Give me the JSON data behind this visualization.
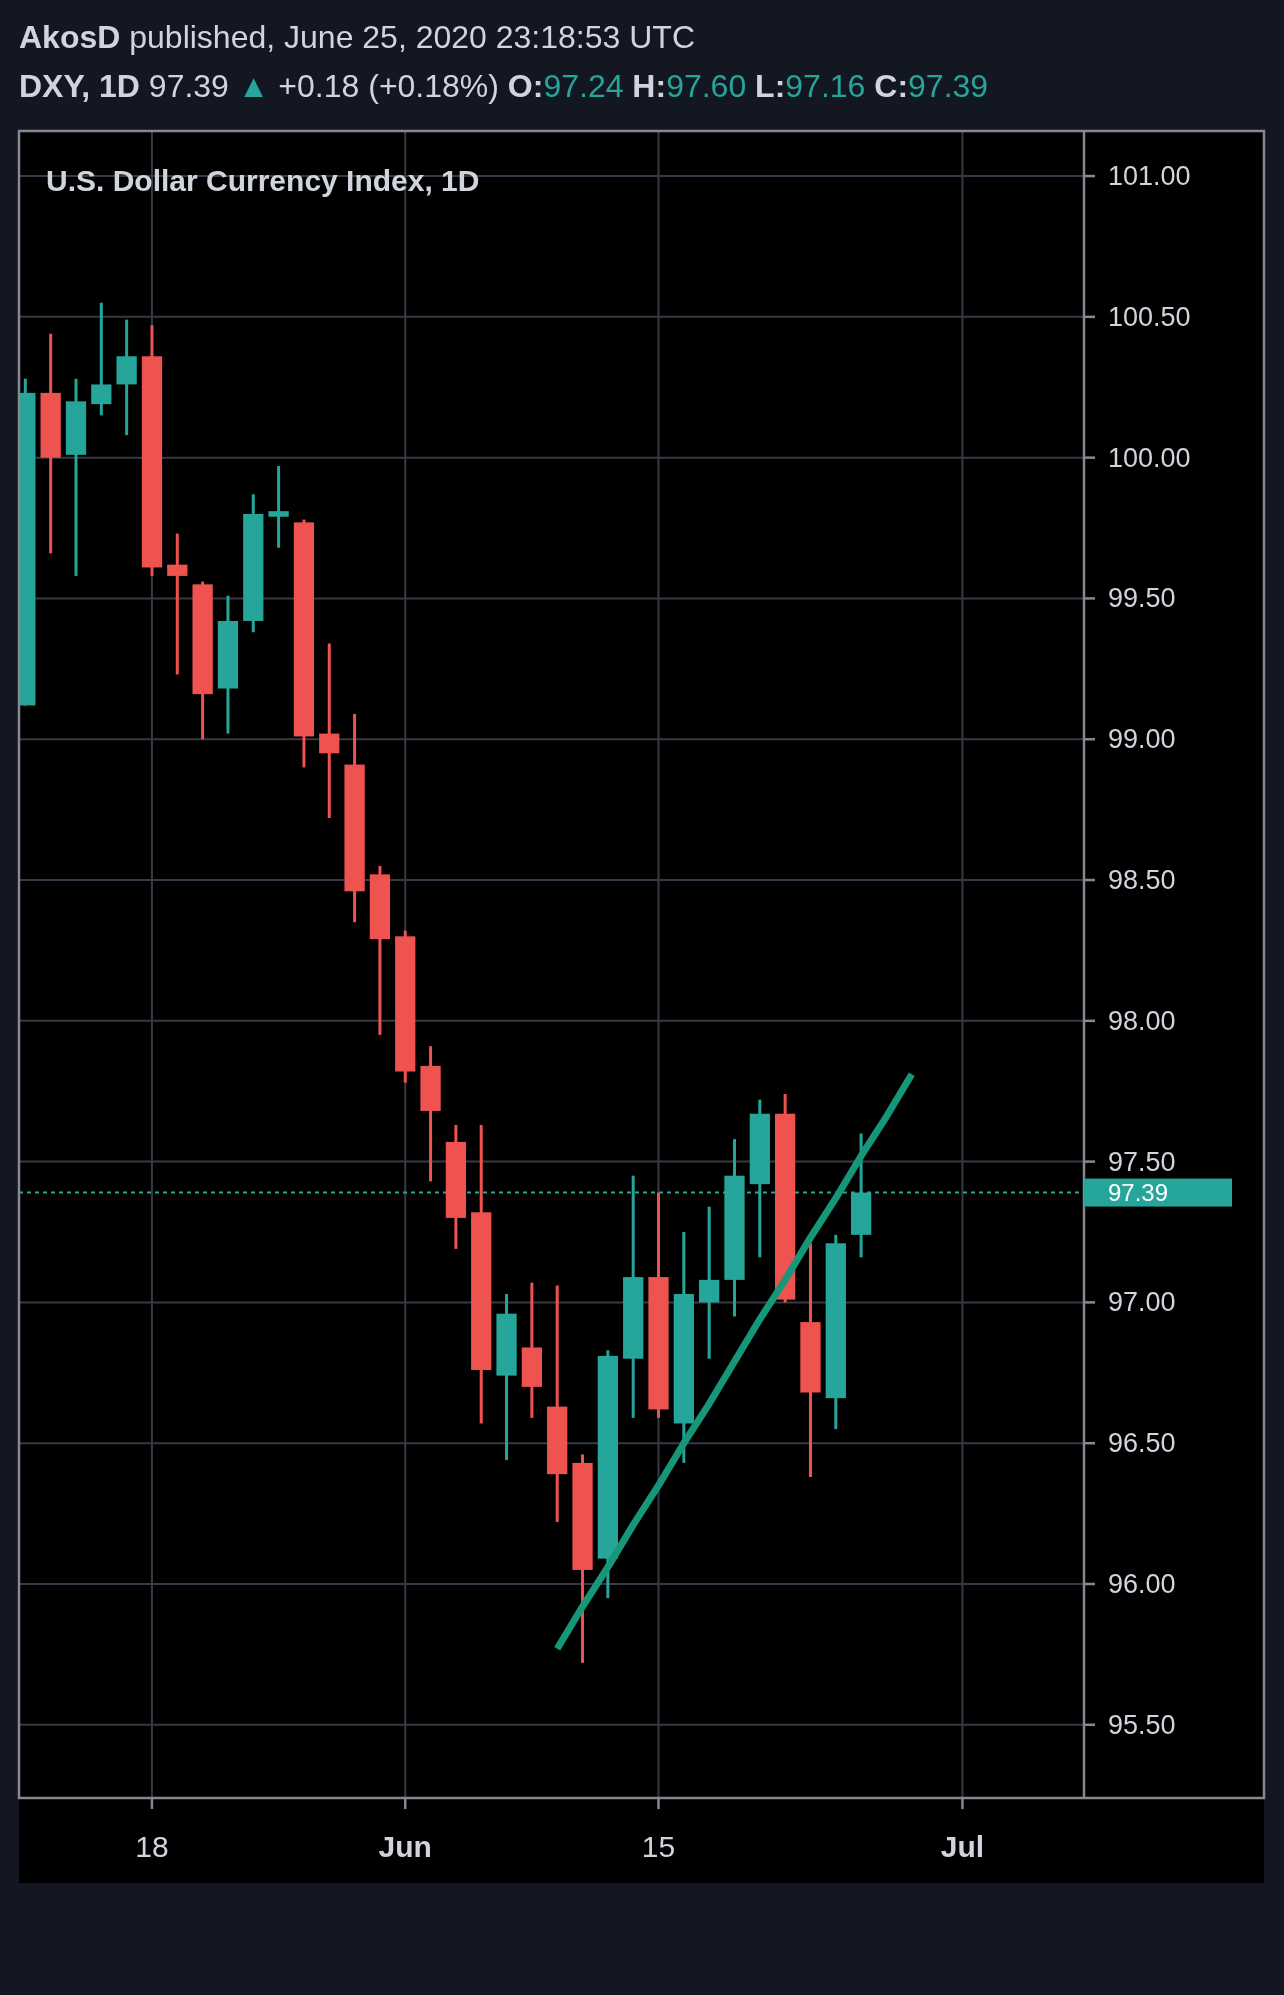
{
  "chart_data": {
    "type": "candlestick",
    "title": "U.S. Dollar Currency Index, 1D",
    "annotations": [
      "AkosD published, June 25, 2020 23:18:53 UTC",
      "DXY, 1D 97.39 ▲ +0.18 (+0.18%) O:97.24 H:97.60 L:97.16 C:97.39"
    ],
    "categories": [
      null,
      null,
      null,
      null,
      null,
      "18",
      null,
      null,
      null,
      null,
      null,
      null,
      null,
      null,
      null,
      "Jun",
      null,
      null,
      null,
      null,
      null,
      null,
      null,
      null,
      null,
      "15",
      null,
      null,
      null,
      null,
      null,
      null,
      null,
      null,
      null,
      null,
      null,
      "Jul"
    ],
    "ohlc": [
      [
        99.12,
        100.28,
        99.12,
        100.23
      ],
      [
        100.23,
        100.44,
        99.66,
        100.0
      ],
      [
        100.01,
        100.28,
        99.58,
        100.2
      ],
      [
        100.19,
        100.55,
        100.15,
        100.26
      ],
      [
        100.26,
        100.49,
        100.08,
        100.36
      ],
      [
        100.36,
        100.47,
        99.58,
        99.61
      ],
      [
        99.62,
        99.73,
        99.23,
        99.58
      ],
      [
        99.55,
        99.56,
        99.0,
        99.16
      ],
      [
        99.18,
        99.51,
        99.02,
        99.42
      ],
      [
        99.42,
        99.87,
        99.38,
        99.8
      ],
      [
        99.79,
        99.97,
        99.68,
        99.81
      ],
      [
        99.77,
        99.78,
        98.9,
        99.01
      ],
      [
        99.02,
        99.34,
        98.72,
        98.95
      ],
      [
        98.91,
        99.09,
        98.35,
        98.46
      ],
      [
        98.52,
        98.55,
        97.95,
        98.29
      ],
      [
        98.3,
        98.32,
        97.78,
        97.82
      ],
      [
        97.84,
        97.91,
        97.43,
        97.68
      ],
      [
        97.57,
        97.63,
        97.19,
        97.3
      ],
      [
        97.32,
        97.63,
        96.57,
        96.76
      ],
      [
        96.74,
        97.03,
        96.44,
        96.96
      ],
      [
        96.84,
        97.07,
        96.59,
        96.7
      ],
      [
        96.63,
        97.06,
        96.22,
        96.39
      ],
      [
        96.43,
        96.46,
        95.72,
        96.05
      ],
      [
        96.09,
        96.83,
        95.95,
        96.81
      ],
      [
        96.8,
        97.45,
        96.59,
        97.09
      ],
      [
        97.09,
        97.39,
        96.59,
        96.62
      ],
      [
        96.57,
        97.25,
        96.43,
        97.03
      ],
      [
        97.0,
        97.34,
        96.8,
        97.08
      ],
      [
        97.08,
        97.58,
        96.95,
        97.45
      ],
      [
        97.42,
        97.72,
        97.16,
        97.67
      ],
      [
        97.67,
        97.74,
        97.0,
        97.01
      ],
      [
        96.93,
        97.21,
        96.38,
        96.68
      ],
      [
        96.66,
        97.24,
        96.55,
        97.21
      ],
      [
        97.24,
        97.6,
        97.16,
        97.39
      ],
      null,
      null,
      null,
      null
    ],
    "colors": [
      "#26a69a",
      "#ef5350",
      "#26a69a",
      "#26a69a",
      "#26a69a",
      "#ef5350",
      "#ef5350",
      "#ef5350",
      "#26a69a",
      "#26a69a",
      "#26a69a",
      "#ef5350",
      "#ef5350",
      "#ef5350",
      "#ef5350",
      "#ef5350",
      "#ef5350",
      "#ef5350",
      "#ef5350",
      "#26a69a",
      "#ef5350",
      "#ef5350",
      "#ef5350",
      "#26a69a",
      "#26a69a",
      "#ef5350",
      "#26a69a",
      "#26a69a",
      "#26a69a",
      "#26a69a",
      "#ef5350",
      "#ef5350",
      "#26a69a",
      "#26a69a",
      null,
      null,
      null,
      null
    ],
    "series": [
      {
        "type": "line",
        "values": [
          null,
          null,
          null,
          null,
          null,
          null,
          null,
          null,
          null,
          null,
          null,
          null,
          null,
          null,
          null,
          null,
          null,
          null,
          null,
          null,
          null,
          95.77,
          95.92,
          96.06,
          96.21,
          96.35,
          96.5,
          96.64,
          96.79,
          96.94,
          97.08,
          97.23,
          97.37,
          97.52,
          97.66,
          97.81,
          null,
          null
        ],
        "color": "#17977a"
      }
    ],
    "ref_lines": [
      {
        "axis": "y",
        "value": 97.39,
        "label": "97.39",
        "color": "#26a69a",
        "line_style": "dotted"
      }
    ],
    "ylim": [
      95.24,
      101.16
    ],
    "yticks": [
      {
        "value": 95.5,
        "label": "95.50"
      },
      {
        "value": 96,
        "label": "96.00"
      },
      {
        "value": 96.5,
        "label": "96.50"
      },
      {
        "value": 97,
        "label": "97.00"
      },
      {
        "value": 97.5,
        "label": "97.50"
      },
      {
        "value": 98,
        "label": "98.00"
      },
      {
        "value": 98.5,
        "label": "98.50"
      },
      {
        "value": 99,
        "label": "99.00"
      },
      {
        "value": 99.5,
        "label": "99.50"
      },
      {
        "value": 100,
        "label": "100.00"
      },
      {
        "value": 100.5,
        "label": "100.50"
      },
      {
        "value": 101,
        "label": "101.00"
      }
    ],
    "grid": true
  }
}
